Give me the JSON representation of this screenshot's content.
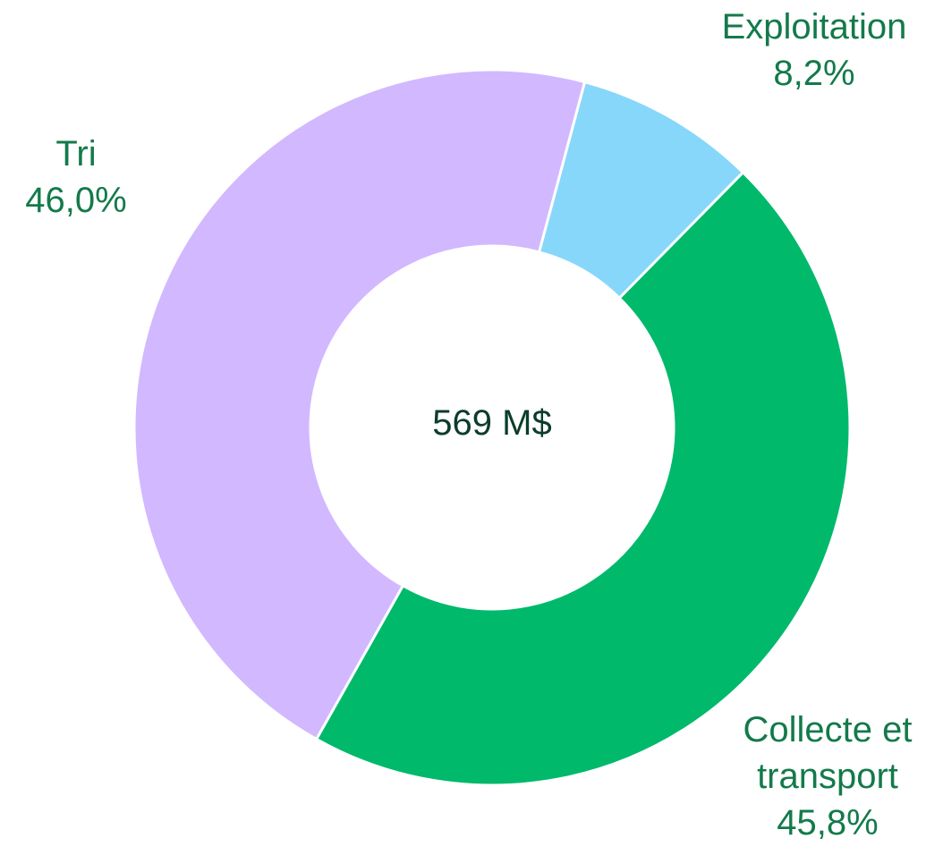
{
  "chart_data": {
    "type": "donut",
    "categories": [
      "Exploitation",
      "Collecte et transport",
      "Tri"
    ],
    "values": [
      8.2,
      45.8,
      46.0
    ],
    "value_labels": [
      "8,2%",
      "45,8%",
      "46,0%"
    ],
    "colors": [
      "#87d7fb",
      "#00b96b",
      "#d2b8ff"
    ],
    "center_label": "569 M$"
  }
}
